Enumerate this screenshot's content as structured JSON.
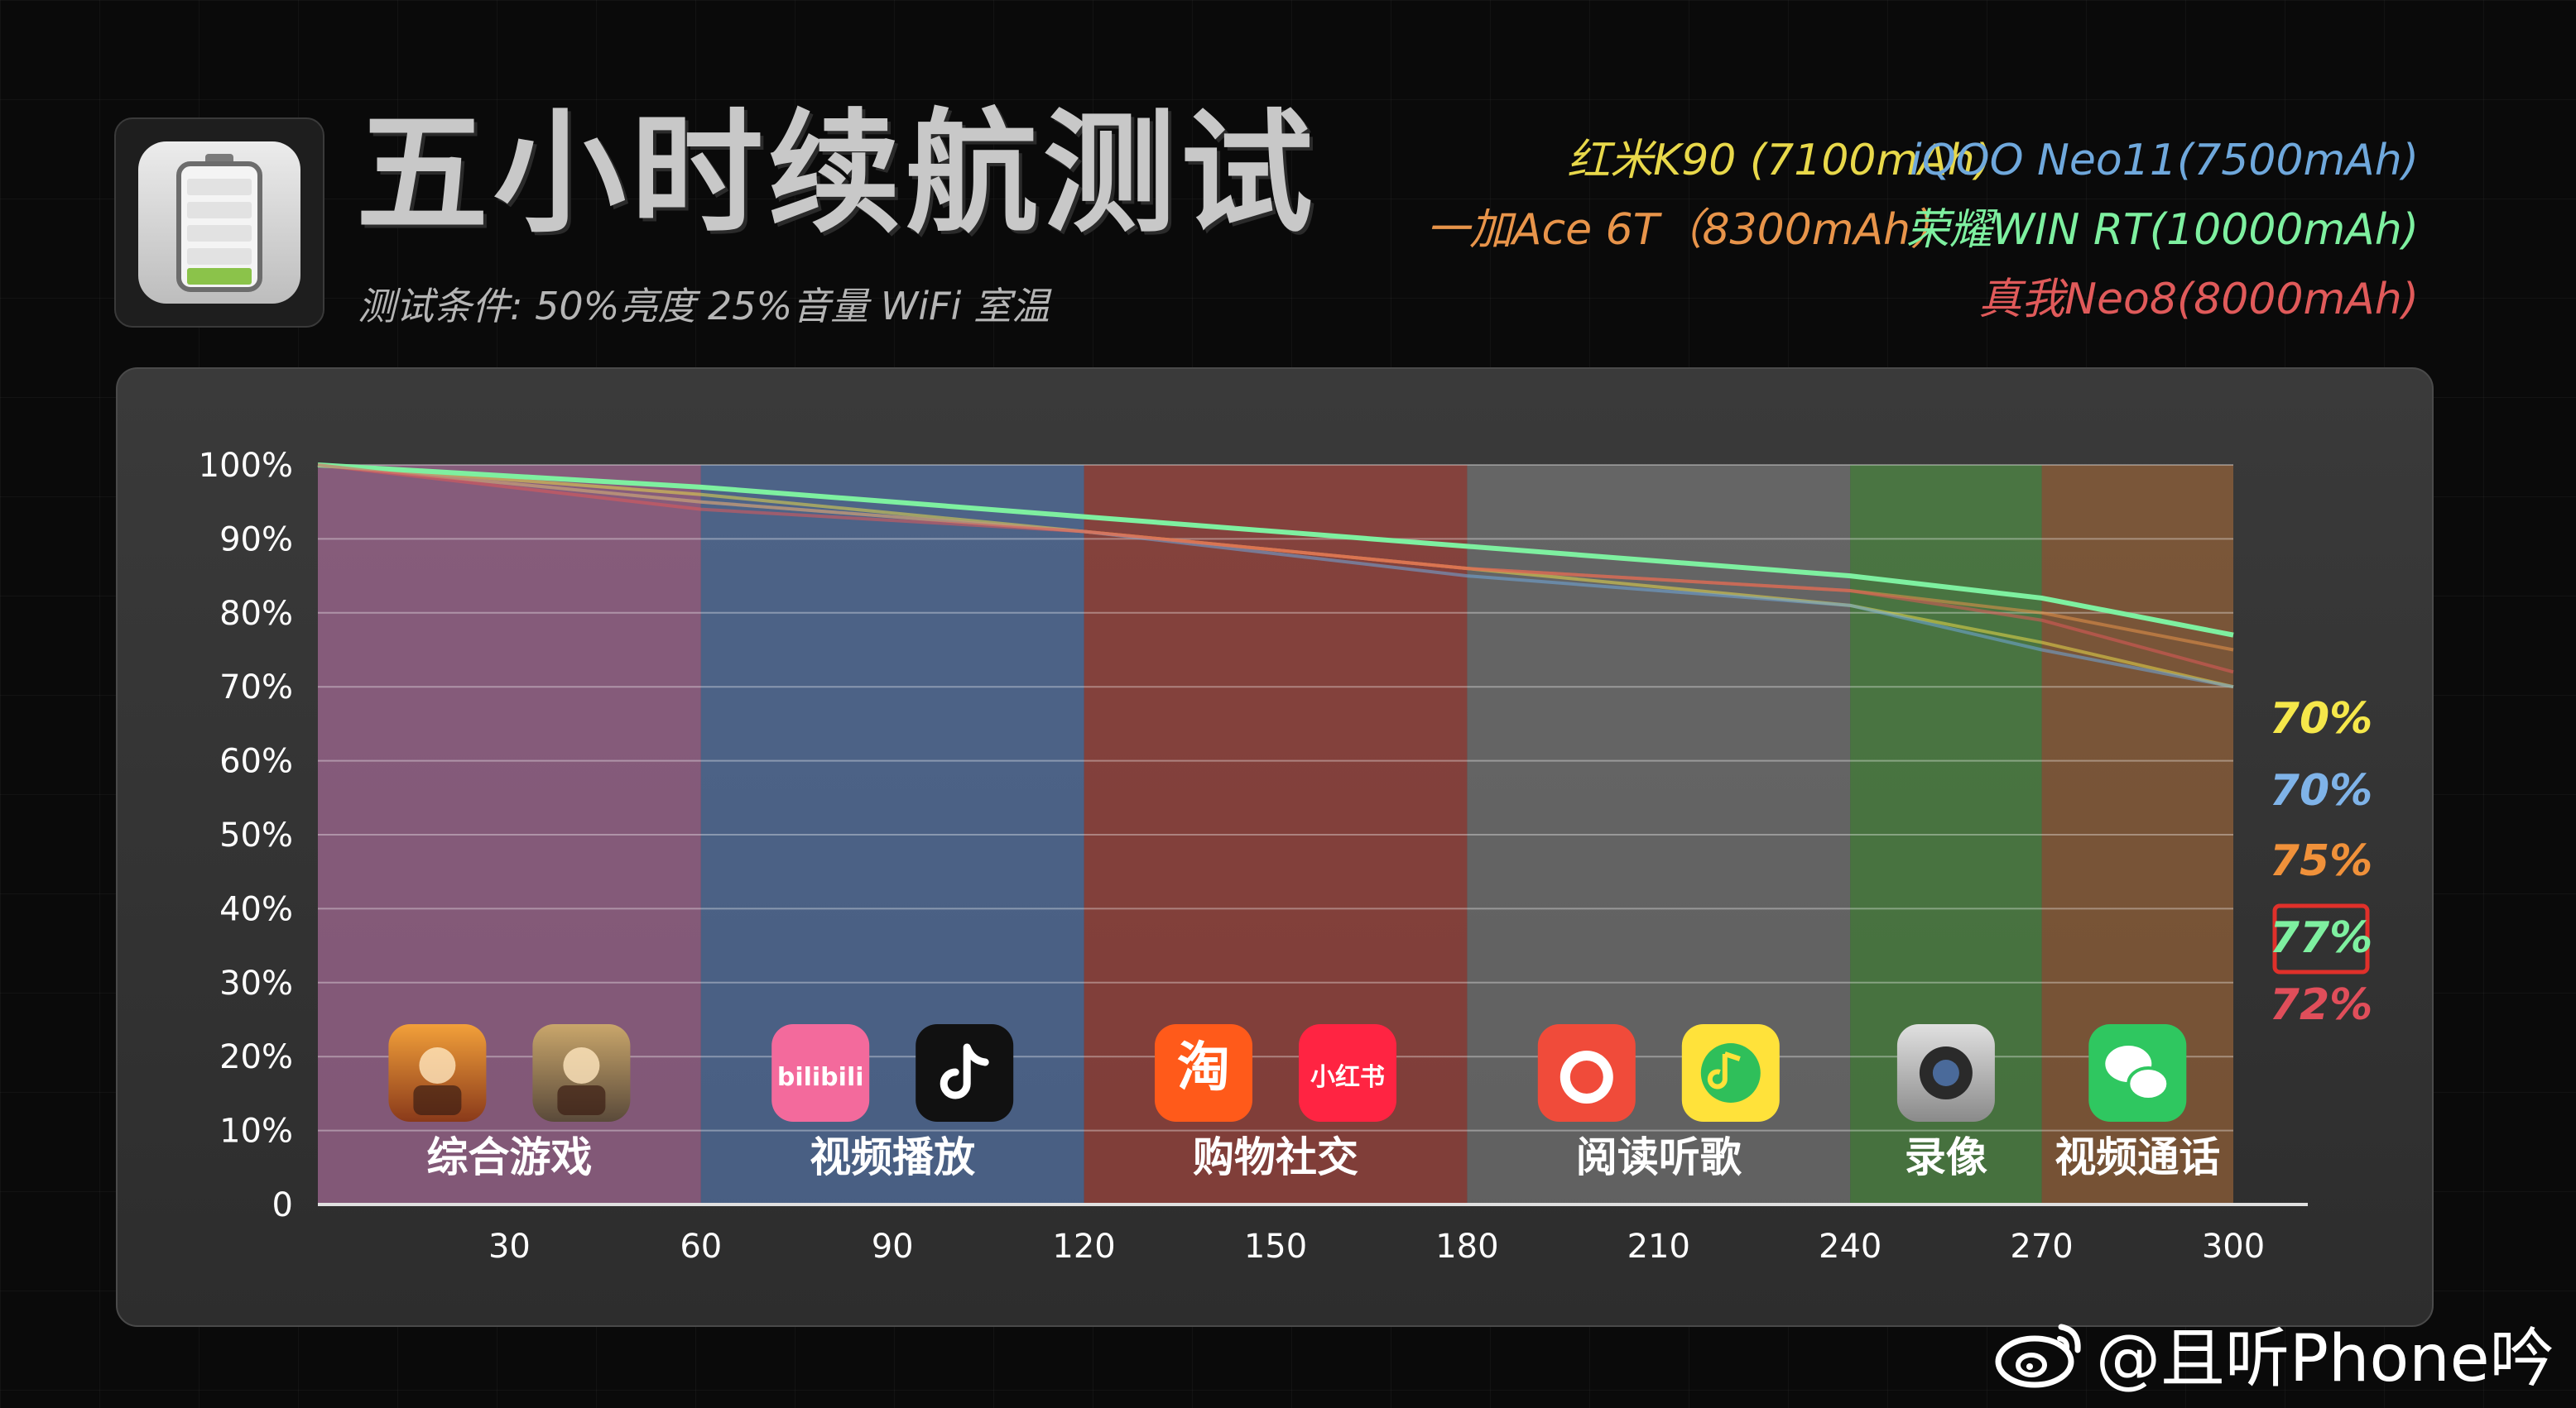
{
  "title": "五小时续航测试",
  "subtitle": "测试条件: 50%亮度  25%音量  WiFi  室温",
  "icon": "battery-icon",
  "legend": [
    {
      "label": "红米K90 (7100mAh)",
      "color": "#e8d84a"
    },
    {
      "label": "iQOO Neo11(7500mAh)",
      "color": "#6fa8dc"
    },
    {
      "label": "一加Ace 6T（8300mAh）",
      "color": "#e8944a"
    },
    {
      "label": "荣耀WIN RT(10000mAh)",
      "color": "#7ef0a0"
    },
    {
      "label": "真我Neo8(8000mAh)",
      "color": "#e05a5a"
    }
  ],
  "chart_data": {
    "type": "line",
    "xlim": [
      0,
      300
    ],
    "ylim": [
      0,
      100
    ],
    "x_ticks": [
      "30",
      "60",
      "90",
      "120",
      "150",
      "180",
      "210",
      "240",
      "270",
      "300"
    ],
    "y_ticks": [
      "0",
      "10%",
      "20%",
      "30%",
      "40%",
      "50%",
      "60%",
      "70%",
      "80%",
      "90%",
      "100%"
    ],
    "x": [
      0,
      60,
      120,
      180,
      240,
      270,
      300
    ],
    "series": [
      {
        "name": "红米K90 (7100mAh)",
        "color": "#e8d84a",
        "values": [
          100,
          96,
          91,
          86,
          81,
          76,
          70
        ]
      },
      {
        "name": "iQOO Neo11(7500mAh)",
        "color": "#6fa8dc",
        "values": [
          100,
          95,
          91,
          85,
          81,
          75,
          70
        ]
      },
      {
        "name": "一加Ace 6T（8300mAh）",
        "color": "#e8944a",
        "values": [
          100,
          95,
          91,
          86,
          83,
          80,
          75
        ]
      },
      {
        "name": "荣耀WIN RT(10000mAh)",
        "color": "#7ef0a0",
        "values": [
          100,
          97,
          93,
          89,
          85,
          82,
          77
        ]
      },
      {
        "name": "真我Neo8(8000mAh)",
        "color": "#e05a5a",
        "values": [
          100,
          94,
          91,
          86,
          83,
          79,
          72
        ]
      }
    ],
    "end_labels": [
      {
        "label": "70%",
        "color": "#f5e74a",
        "highlight": false
      },
      {
        "label": "70%",
        "color": "#7fb3e8",
        "highlight": false
      },
      {
        "label": "75%",
        "color": "#f0913a",
        "highlight": false
      },
      {
        "label": "77%",
        "color": "#7ef0a0",
        "highlight": true
      },
      {
        "label": "72%",
        "color": "#e04e5a",
        "highlight": false
      }
    ],
    "segments": [
      {
        "start": 0,
        "end": 60,
        "label": "综合游戏",
        "color": "#c77ab3",
        "apps": [
          "王者荣耀",
          "和平精英"
        ]
      },
      {
        "start": 60,
        "end": 120,
        "label": "视频播放",
        "color": "#5f86c9",
        "apps": [
          "bilibili",
          "抖音"
        ]
      },
      {
        "start": 120,
        "end": 180,
        "label": "购物社交",
        "color": "#c24a42",
        "apps": [
          "淘",
          "小红书"
        ]
      },
      {
        "start": 180,
        "end": 240,
        "label": "阅读听歌",
        "color": "#8a8a8a",
        "apps": [
          "番茄小说",
          "QQ音乐"
        ]
      },
      {
        "start": 240,
        "end": 270,
        "label": "录像",
        "color": "#5aa84a",
        "apps": [
          "相机"
        ]
      },
      {
        "start": 270,
        "end": 300,
        "label": "视频通话",
        "color": "#b0703a",
        "apps": [
          "微信"
        ]
      }
    ]
  },
  "watermark": "@且听Phone吟"
}
